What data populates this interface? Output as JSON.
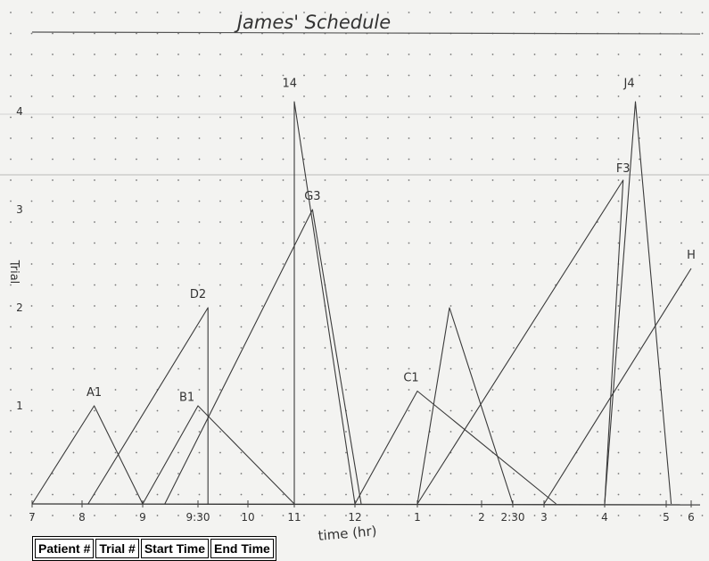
{
  "chart_data": {
    "type": "line",
    "title": "James' Schedule",
    "xlabel": "time (hr)",
    "ylabel": "Trial",
    "x_ticks": [
      "7",
      "8",
      "9",
      "9:30",
      "10",
      "11",
      "12",
      "1",
      "2",
      "2:30",
      "3",
      "4",
      "5",
      "6"
    ],
    "x_tick_values": [
      7,
      8,
      9,
      9.5,
      10,
      11,
      12,
      13,
      14,
      14.5,
      15,
      16,
      17,
      18
    ],
    "y_ticks": [
      "1",
      "2",
      "3",
      "4"
    ],
    "y_tick_values": [
      1,
      2,
      3,
      4
    ],
    "xlim": [
      6.9,
      18.1
    ],
    "ylim": [
      0,
      4.6
    ],
    "grid": "dotted",
    "series": [
      {
        "points": [
          [
            7,
            0
          ],
          [
            8.2,
            1
          ],
          [
            9,
            0
          ]
        ]
      },
      {
        "points": [
          [
            8.1,
            0
          ],
          [
            9.6,
            2
          ],
          [
            9.6,
            0
          ]
        ]
      },
      {
        "points": [
          [
            9,
            0
          ],
          [
            9.5,
            1
          ],
          [
            11,
            0
          ]
        ]
      },
      {
        "points": [
          [
            9.2,
            0
          ],
          [
            11.3,
            3
          ],
          [
            12.1,
            0
          ]
        ]
      },
      {
        "points": [
          [
            11,
            0
          ],
          [
            11,
            4.1
          ],
          [
            12,
            0
          ]
        ]
      },
      {
        "points": [
          [
            12,
            0
          ],
          [
            13,
            1.15
          ],
          [
            15.2,
            0
          ]
        ]
      },
      {
        "points": [
          [
            13,
            0
          ],
          [
            13.5,
            2
          ],
          [
            14.5,
            0
          ]
        ]
      },
      {
        "points": [
          [
            13,
            0
          ],
          [
            16.3,
            3.3
          ],
          [
            16,
            0
          ]
        ]
      },
      {
        "points": [
          [
            15,
            0
          ],
          [
            18,
            2.4
          ]
        ]
      },
      {
        "points": [
          [
            16,
            0
          ],
          [
            16.5,
            4.1
          ],
          [
            17.2,
            0
          ]
        ]
      }
    ],
    "annotations": [
      {
        "text": "A1",
        "x": 8.2,
        "y": 1.1
      },
      {
        "text": "D2",
        "x": 9.5,
        "y": 2.1
      },
      {
        "text": "B1",
        "x": 9.4,
        "y": 1.05
      },
      {
        "text": "G3",
        "x": 11.3,
        "y": 3.1
      },
      {
        "text": "14",
        "x": 10.9,
        "y": 4.25
      },
      {
        "text": "C1",
        "x": 12.9,
        "y": 1.25
      },
      {
        "text": "F3",
        "x": 16.3,
        "y": 3.38
      },
      {
        "text": "J4",
        "x": 16.4,
        "y": 4.25
      },
      {
        "text": "H",
        "x": 18,
        "y": 2.5
      }
    ]
  },
  "table": {
    "headers": [
      "Patient #",
      "Trial #",
      "Start Time",
      "End Time"
    ]
  }
}
